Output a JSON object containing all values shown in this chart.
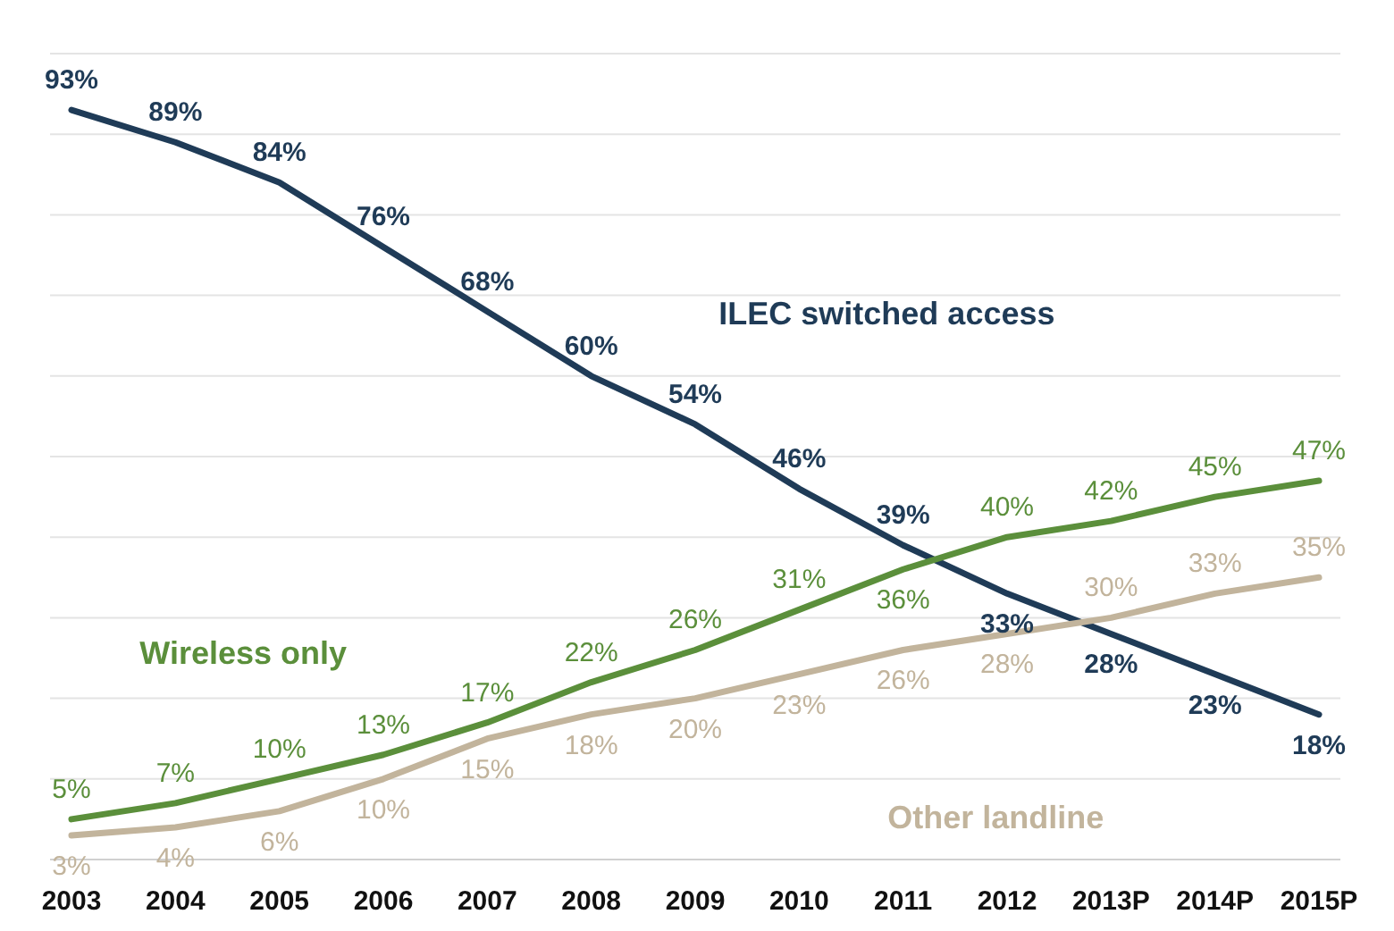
{
  "chart_data": {
    "type": "line",
    "categories": [
      "2003",
      "2004",
      "2005",
      "2006",
      "2007",
      "2008",
      "2009",
      "2010",
      "2011",
      "2012",
      "2013P",
      "2014P",
      "2015P"
    ],
    "series": [
      {
        "name": "ILEC switched access",
        "color": "#1f3b57",
        "values": [
          93,
          89,
          84,
          76,
          68,
          60,
          54,
          46,
          39,
          33,
          28,
          23,
          18
        ],
        "value_labels": [
          "93%",
          "89%",
          "84%",
          "76%",
          "68%",
          "60%",
          "54%",
          "46%",
          "39%",
          "33%",
          "28%",
          "23%",
          "18%"
        ]
      },
      {
        "name": "Wireless only",
        "color": "#5b8f3b",
        "values": [
          5,
          7,
          10,
          13,
          17,
          22,
          26,
          31,
          36,
          40,
          42,
          45,
          47
        ],
        "value_labels": [
          "5%",
          "7%",
          "10%",
          "13%",
          "17%",
          "22%",
          "26%",
          "31%",
          "36%",
          "40%",
          "42%",
          "45%",
          "47%"
        ]
      },
      {
        "name": "Other landline",
        "color": "#c2b49c",
        "values": [
          3,
          4,
          6,
          10,
          15,
          18,
          20,
          23,
          26,
          28,
          30,
          33,
          35
        ],
        "value_labels": [
          "3%",
          "4%",
          "6%",
          "10%",
          "15%",
          "18%",
          "20%",
          "23%",
          "26%",
          "28%",
          "30%",
          "33%",
          "35%"
        ]
      }
    ],
    "ylim": [
      0,
      100
    ],
    "yticks": [
      {
        "value": 0,
        "label": null
      },
      {
        "value": 10,
        "label": null
      },
      {
        "value": 20,
        "label": null
      },
      {
        "value": 30,
        "label": null
      },
      {
        "value": 40,
        "label": null
      },
      {
        "value": 50,
        "label": null
      },
      {
        "value": 60,
        "label": null
      },
      {
        "value": 70,
        "label": null
      },
      {
        "value": 80,
        "label": null
      },
      {
        "value": 90,
        "label": null
      },
      {
        "value": 100,
        "label": null
      }
    ],
    "tick_labels": "x",
    "grid": "y",
    "marker": "none",
    "line_style": "solid"
  }
}
